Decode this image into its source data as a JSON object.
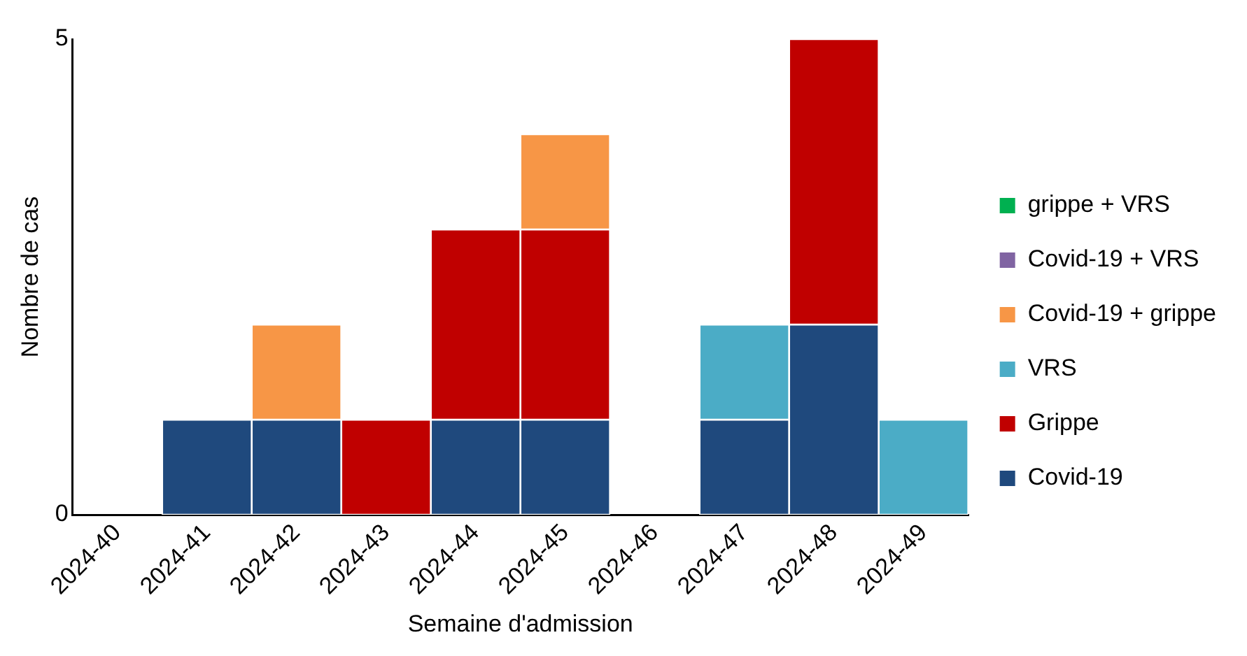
{
  "chart_data": {
    "type": "bar",
    "xlabel": "Semaine d'admission",
    "ylabel": "Nombre de cas",
    "categories": [
      "2024-40",
      "2024-41",
      "2024-42",
      "2024-43",
      "2024-44",
      "2024-45",
      "2024-46",
      "2024-47",
      "2024-48",
      "2024-49"
    ],
    "series": [
      {
        "name": "Covid-19",
        "color": "#1f497d",
        "values": [
          0,
          1,
          1,
          0,
          1,
          1,
          0,
          1,
          2,
          0
        ]
      },
      {
        "name": "Grippe",
        "color": "#c00000",
        "values": [
          0,
          0,
          0,
          1,
          2,
          2,
          0,
          0,
          3,
          0
        ]
      },
      {
        "name": "VRS",
        "color": "#4bacc6",
        "values": [
          0,
          0,
          0,
          0,
          0,
          0,
          0,
          1,
          0,
          1
        ]
      },
      {
        "name": "Covid-19 + grippe",
        "color": "#f79646",
        "values": [
          0,
          0,
          1,
          0,
          0,
          1,
          0,
          0,
          0,
          0
        ]
      },
      {
        "name": "Covid-19 + VRS",
        "color": "#8064a2",
        "values": [
          0,
          0,
          0,
          0,
          0,
          0,
          0,
          0,
          0,
          0
        ]
      },
      {
        "name": "grippe + VRS",
        "color": "#00b050",
        "values": [
          0,
          0,
          0,
          0,
          0,
          0,
          0,
          0,
          0,
          0
        ]
      }
    ],
    "stacked": true,
    "ylim": [
      0,
      5
    ],
    "yticks": [
      0,
      5
    ],
    "grid": false,
    "legend": "right"
  }
}
